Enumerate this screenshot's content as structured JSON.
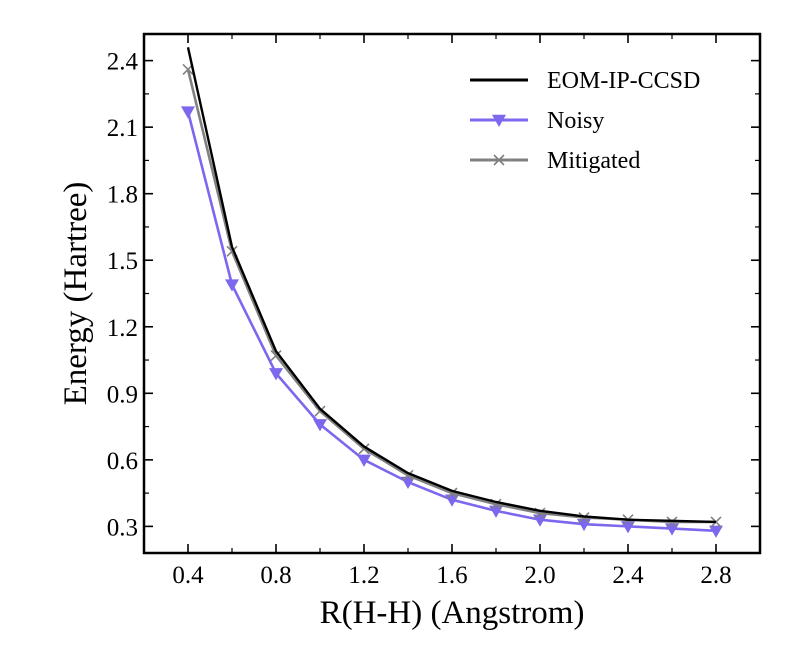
{
  "chart_data": {
    "type": "line",
    "xlabel": "R(H-H) (Angstrom)",
    "ylabel": "Energy (Hartree)",
    "xlim": [
      0.2,
      3.0
    ],
    "ylim": [
      0.18,
      2.52
    ],
    "xticks": [
      0.4,
      0.8,
      1.2,
      1.6,
      2.0,
      2.4,
      2.8
    ],
    "xtick_labels": [
      "0.4",
      "0.8",
      "1.2",
      "1.6",
      "2.0",
      "2.4",
      "2.8"
    ],
    "yticks": [
      0.3,
      0.6,
      0.9,
      1.2,
      1.5,
      1.8,
      2.1,
      2.4
    ],
    "ytick_labels": [
      "0.3",
      "0.6",
      "0.9",
      "1.2",
      "1.5",
      "1.8",
      "2.1",
      "2.4"
    ],
    "legend_position": "top-right",
    "x": [
      0.4,
      0.6,
      0.8,
      1.0,
      1.2,
      1.4,
      1.6,
      1.8,
      2.0,
      2.2,
      2.4,
      2.6,
      2.8
    ],
    "series": [
      {
        "name": "EOM-IP-CCSD",
        "color": "#000000",
        "marker": "none",
        "values": [
          2.46,
          1.56,
          1.09,
          0.83,
          0.66,
          0.54,
          0.46,
          0.41,
          0.37,
          0.345,
          0.33,
          0.325,
          0.32
        ]
      },
      {
        "name": "Noisy",
        "color": "#7b68ee",
        "marker": "triangle-down",
        "values": [
          2.17,
          1.39,
          0.99,
          0.76,
          0.6,
          0.5,
          0.42,
          0.37,
          0.33,
          0.31,
          0.3,
          0.29,
          0.28
        ]
      },
      {
        "name": "Mitigated",
        "color": "#808080",
        "marker": "x",
        "values": [
          2.36,
          1.54,
          1.07,
          0.82,
          0.65,
          0.53,
          0.45,
          0.4,
          0.36,
          0.34,
          0.33,
          0.32,
          0.32
        ]
      }
    ]
  }
}
